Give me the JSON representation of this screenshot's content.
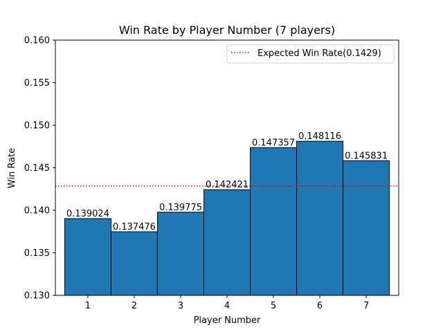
{
  "chart_data": {
    "type": "bar",
    "title": "Win Rate by Player Number (7 players)",
    "xlabel": "Player Number",
    "ylabel": "Win Rate",
    "categories": [
      "1",
      "2",
      "3",
      "4",
      "5",
      "6",
      "7"
    ],
    "values": [
      0.139024,
      0.137476,
      0.139775,
      0.142421,
      0.147357,
      0.148116,
      0.145831
    ],
    "bar_labels": [
      "0.139024",
      "0.137476",
      "0.139775",
      "0.142421",
      "0.147357",
      "0.148116",
      "0.145831"
    ],
    "ylim": [
      0.13,
      0.16
    ],
    "yticks": [
      "0.130",
      "0.135",
      "0.140",
      "0.145",
      "0.150",
      "0.155",
      "0.160"
    ],
    "reference_line": {
      "value": 0.142857,
      "label": "Expected Win Rate(0.1429)",
      "color": "#ff0000",
      "style": "dotted"
    },
    "bar_color": "#1f77b4",
    "bar_edge_color": "#000000",
    "legend_position": "top-right",
    "grid": false
  }
}
